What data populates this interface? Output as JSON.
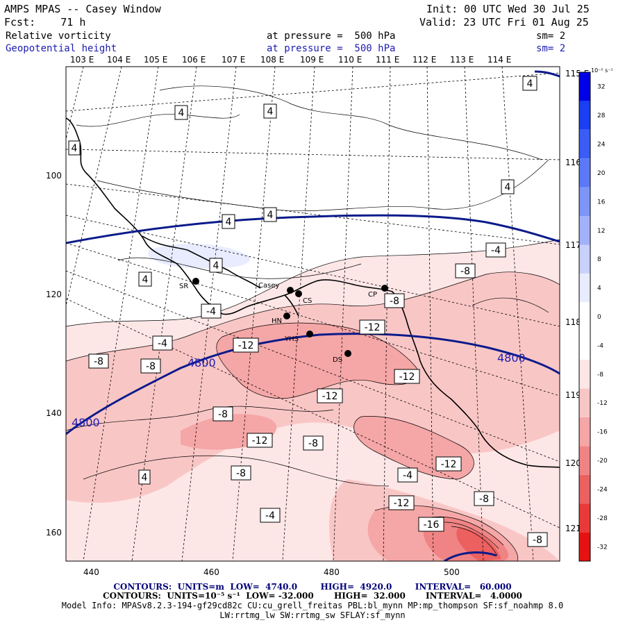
{
  "header": {
    "title": "AMPS MPAS -- Casey Window",
    "fcst": "Fcst:    71 h",
    "init": "Init: 00 UTC Wed 30 Jul 25",
    "valid": "Valid: 23 UTC Fri 01 Aug 25",
    "field1_name": "Relative vorticity",
    "field1_level": "at pressure =  500 hPa",
    "field1_sm": "sm= 2",
    "field2_name": "Geopotential height",
    "field2_level": "at pressure =  500 hPa",
    "field2_sm": "sm= 2"
  },
  "top_lon_labels": [
    "103 E",
    "104 E",
    "105 E",
    "106 E",
    "107 E",
    "108 E",
    "109 E",
    "110 E",
    "111 E",
    "112 E",
    "113 E",
    "114 E"
  ],
  "right_lon_labels": [
    "115 E",
    "116 E",
    "117 E",
    "118 E",
    "119 E",
    "120 E",
    "121 E"
  ],
  "x_axis_ticks": [
    "440",
    "460",
    "480",
    "500"
  ],
  "y_axis_ticks": [
    "100",
    "120",
    "140",
    "160"
  ],
  "stations": [
    "Casey",
    "CS",
    "CP",
    "SR",
    "HN",
    "YHS",
    "DS"
  ],
  "height_contour_labels": [
    "4800",
    "4800",
    "4800"
  ],
  "vorticity_labels": [
    "4",
    "4",
    "4",
    "4",
    "4",
    "4",
    "4",
    "4",
    "4",
    "4",
    "-4",
    "-4",
    "-4",
    "-4",
    "-8",
    "-8",
    "-8",
    "-8",
    "-8",
    "-8",
    "-8",
    "-12",
    "-12",
    "-12",
    "-12",
    "-12",
    "-12",
    "-12",
    "-16",
    "-8",
    "-8",
    "-4"
  ],
  "colorbar": {
    "units": "10⁻⁵ s⁻¹",
    "ticks": [
      "32",
      "28",
      "24",
      "20",
      "16",
      "12",
      "8",
      "4",
      "0",
      "-4",
      "-8",
      "-12",
      "-16",
      "-20",
      "-24",
      "-28",
      "-32"
    ],
    "colors": [
      "#0000e6",
      "#1a3ef2",
      "#3b5cf5",
      "#5a78f7",
      "#7d95f8",
      "#a2b2fa",
      "#c8d1fc",
      "#e8ecfe",
      "#ffffff",
      "#ffffff",
      "#fde6e6",
      "#f9c6c6",
      "#f5a6a6",
      "#f08484",
      "#ec6060",
      "#e93a3a",
      "#e61212"
    ]
  },
  "footer": {
    "line1": "CONTOURS:  UNITS=m  LOW=  4740.0        HIGH=  4920.0        INTERVAL=   60.000",
    "line2": "CONTOURS:  UNITS=10⁻⁵ s⁻¹  LOW= -32.000       HIGH=  32.000       INTERVAL=   4.0000",
    "line3": "Model Info: MPASv8.2.3-194-gf29cd82c CU:cu_grell_freitas PBL:bl_mynn MP:mp_thompson SF:sf_noahmp 8.0",
    "line4": "LW:rrtmg_lw SW:rrtmg_sw SFLAY:sf_mynn"
  }
}
